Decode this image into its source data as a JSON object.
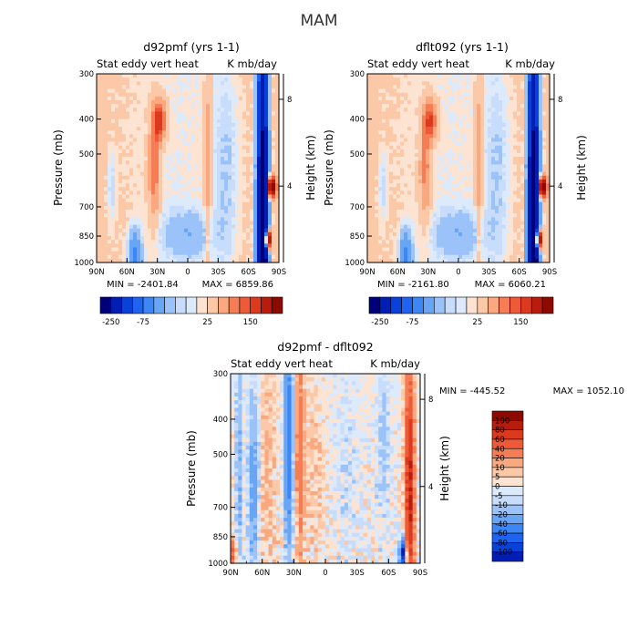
{
  "main_title": "MAM",
  "colors": {
    "cool": [
      "#00007a",
      "#001eb4",
      "#0a41d8",
      "#1e64f0",
      "#3c87f5",
      "#69a5f5",
      "#9bc3fa",
      "#c8dcfc",
      "#dceafc"
    ],
    "warm": [
      "#fde4d2",
      "#fbc8a8",
      "#f9a87f",
      "#f57d55",
      "#ee5a37",
      "#dc3a1e",
      "#b91c0c",
      "#8c0a00"
    ]
  },
  "chart_data": [
    {
      "type": "heatmap",
      "title": "d92pmf (yrs 1-1)",
      "left_label": "Stat eddy vert heat",
      "right_label": "K mb/day",
      "xlabel": "",
      "ylabel": "Pressure (mb)",
      "ylabel_right": "Height (km)",
      "x_ticks": [
        "90N",
        "60N",
        "30N",
        "0",
        "30S",
        "60S",
        "90S"
      ],
      "y_ticks": [
        "300",
        "400",
        "500",
        "700",
        "850",
        "1000"
      ],
      "y_ticks_right": [
        "8",
        "4"
      ],
      "min_label": "MIN = -2401.84",
      "max_label": "MAX = 6859.86",
      "colorbar_labels": [
        "-250",
        "-75",
        "25",
        "150"
      ],
      "grid": false
    },
    {
      "type": "heatmap",
      "title": "dflt092 (yrs 1-1)",
      "left_label": "Stat eddy vert heat",
      "right_label": "K mb/day",
      "xlabel": "",
      "ylabel": "Pressure (mb)",
      "ylabel_right": "Height (km)",
      "x_ticks": [
        "90N",
        "60N",
        "30N",
        "0",
        "30S",
        "60S",
        "90S"
      ],
      "y_ticks": [
        "300",
        "400",
        "500",
        "700",
        "850",
        "1000"
      ],
      "y_ticks_right": [
        "8",
        "4"
      ],
      "min_label": "MIN = -2161.80",
      "max_label": "MAX = 6060.21",
      "colorbar_labels": [
        "-250",
        "-75",
        "25",
        "150"
      ],
      "grid": false
    },
    {
      "type": "heatmap",
      "title": "d92pmf - dflt092",
      "left_label": "Stat eddy vert heat",
      "right_label": "K mb/day",
      "xlabel": "",
      "ylabel": "Pressure (mb)",
      "ylabel_right": "Height (km)",
      "x_ticks": [
        "90N",
        "60N",
        "30N",
        "0",
        "30S",
        "60S",
        "90S"
      ],
      "y_ticks": [
        "300",
        "400",
        "500",
        "700",
        "850",
        "1000"
      ],
      "y_ticks_right": [
        "8",
        "4"
      ],
      "min_label": "MIN = -445.52",
      "max_label": "MAX = 1052.10",
      "colorbar_labels": [
        "100",
        "80",
        "60",
        "40",
        "20",
        "10",
        "5",
        "0",
        "-5",
        "-10",
        "-20",
        "-40",
        "-60",
        "-80",
        "-100"
      ],
      "grid": false
    }
  ]
}
